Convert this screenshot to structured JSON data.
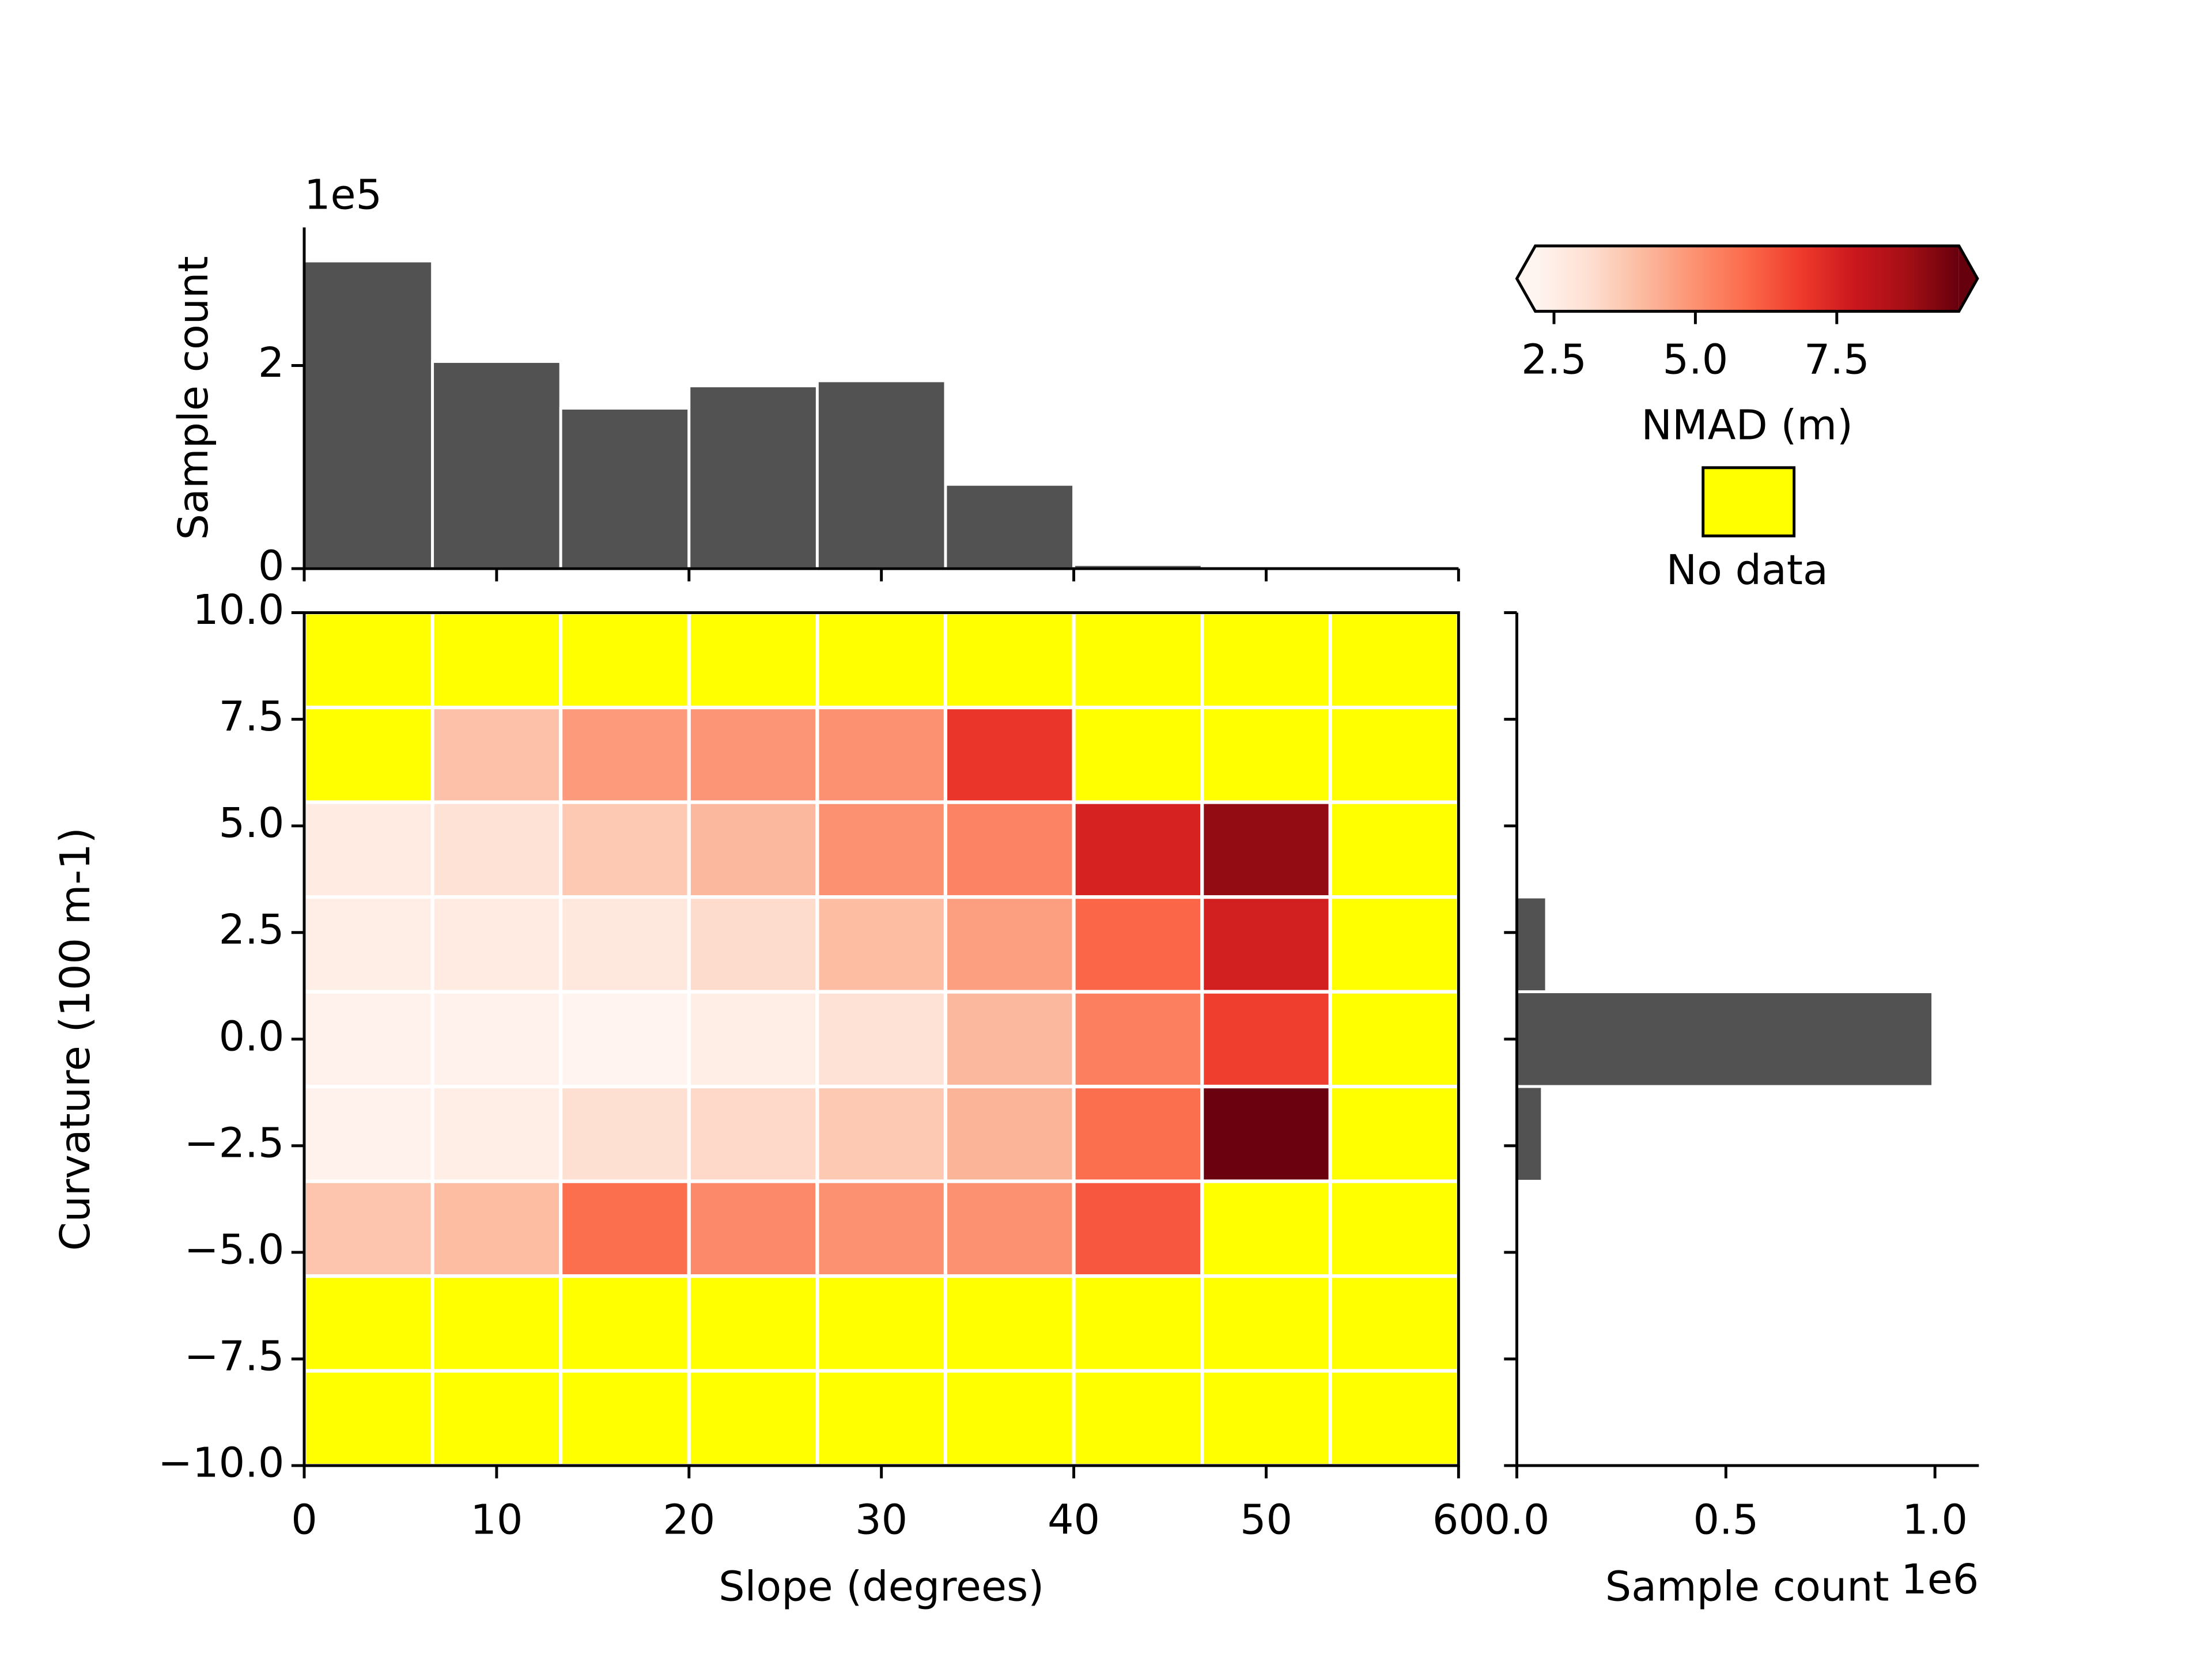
{
  "chart_data": [
    {
      "type": "heatmap",
      "xlabel": "Slope (degrees)",
      "ylabel": "Curvature (100 m-1)",
      "x_bins": [
        0,
        6.667,
        13.333,
        20,
        26.667,
        33.333,
        40,
        46.667,
        53.333,
        60
      ],
      "y_bins": [
        -10,
        -7.778,
        -5.556,
        -3.333,
        -1.111,
        1.111,
        3.333,
        5.556,
        7.778,
        10
      ],
      "values": [
        [
          null,
          null,
          null,
          null,
          null,
          null,
          null,
          null,
          null
        ],
        [
          null,
          null,
          null,
          null,
          null,
          null,
          null,
          null,
          null
        ],
        [
          3.8,
          4.0,
          5.8,
          5.2,
          5.0,
          5.0,
          6.3,
          null,
          null
        ],
        [
          2.3,
          2.5,
          3.1,
          3.3,
          3.7,
          4.2,
          5.8,
          9.6,
          null
        ],
        [
          2.3,
          2.3,
          2.2,
          2.5,
          3.0,
          4.1,
          5.4,
          6.8,
          null
        ],
        [
          2.5,
          2.6,
          2.8,
          3.2,
          4.0,
          4.7,
          6.0,
          7.6,
          null
        ],
        [
          2.6,
          3.0,
          3.7,
          4.1,
          5.0,
          5.3,
          7.5,
          9.0,
          null
        ],
        [
          null,
          3.9,
          4.8,
          4.9,
          5.0,
          7.0,
          null,
          null,
          null
        ],
        [
          null,
          null,
          null,
          null,
          null,
          null,
          null,
          null,
          null
        ]
      ],
      "xlim": [
        0,
        60
      ],
      "ylim": [
        -10,
        10
      ],
      "xticks": [
        0,
        10,
        20,
        30,
        40,
        50,
        {
          "value": 60,
          "label": "60"
        }
      ],
      "yticks": [
        {
          "value": -10,
          "label": "−10.0"
        },
        {
          "value": -7.5,
          "label": "−7.5"
        },
        {
          "value": -5,
          "label": "−5.0"
        },
        {
          "value": -2.5,
          "label": "−2.5"
        },
        {
          "value": 0,
          "label": "0.0"
        },
        {
          "value": 2.5,
          "label": "2.5"
        },
        {
          "value": 5,
          "label": "5.0"
        },
        {
          "value": 7.5,
          "label": "7.5"
        },
        {
          "value": 10,
          "label": "10.0"
        }
      ],
      "colorbar": {
        "label": "NMAD (m)",
        "clim": [
          2.17,
          9.66
        ],
        "extend": "both",
        "ticks": [
          {
            "value": 2.5,
            "label": "2.5"
          },
          {
            "value": 5,
            "label": "5.0"
          },
          {
            "value": 7.5,
            "label": "7.5"
          }
        ],
        "colormap": [
          "#fff5f0",
          "#fee0d2",
          "#fcbba1",
          "#fc9272",
          "#fb6a4a",
          "#ef3b2c",
          "#cb181d",
          "#a50f15",
          "#67000d"
        ]
      },
      "nodata": {
        "label": "No data",
        "color": "#ffff00"
      }
    },
    {
      "type": "histogram",
      "orientation": "vertical",
      "ylabel": "Sample count",
      "offset_label": "1e5",
      "color": "#525252",
      "bins": [
        0,
        6.667,
        13.333,
        20,
        26.667,
        33.333,
        40,
        46.667,
        53.333,
        60
      ],
      "values": [
        3.03,
        2.04,
        1.58,
        1.8,
        1.85,
        0.83,
        0.04,
        0,
        0
      ],
      "xlim": [
        0,
        60
      ],
      "xticks": [
        0,
        10,
        20,
        30,
        40,
        50,
        60
      ],
      "ylim": [
        0,
        3.36
      ],
      "yticks": [
        0,
        2
      ]
    },
    {
      "type": "histogram",
      "orientation": "horizontal",
      "xlabel": "Sample count",
      "offset_label": "1e6",
      "color": "#525252",
      "bins": [
        -10,
        -7.778,
        -5.556,
        -3.333,
        -1.111,
        1.111,
        3.333,
        5.556,
        7.778,
        10
      ],
      "values": [
        0,
        0,
        0,
        0.061,
        0.995,
        0.071,
        0,
        0,
        0
      ],
      "xlim": [
        0,
        1.105
      ],
      "xticks": [
        {
          "value": 0,
          "label": "0.0"
        },
        {
          "value": 0.5,
          "label": "0.5"
        },
        {
          "value": 1,
          "label": "1.0"
        }
      ],
      "ylim": [
        -10,
        10
      ],
      "yticks": [
        -10,
        -7.5,
        -5,
        -2.5,
        0,
        2.5,
        5,
        7.5,
        10
      ]
    }
  ]
}
